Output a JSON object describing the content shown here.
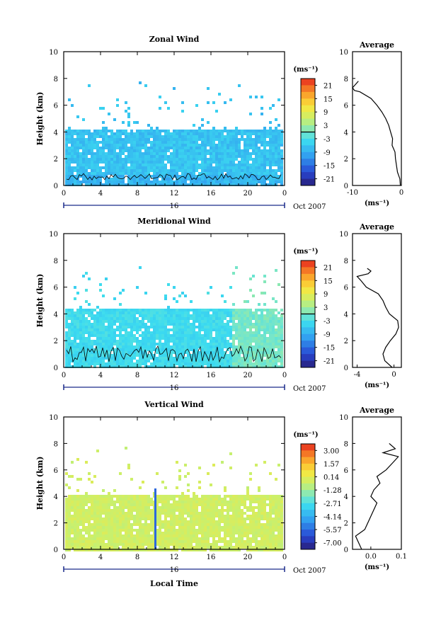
{
  "chart_data": [
    {
      "type": "heatmap",
      "title": "Zonal Wind",
      "ylabel": "Height (km)",
      "yticks": [
        "0",
        "2",
        "4",
        "6",
        "8",
        "10"
      ],
      "ylim": [
        0,
        10
      ],
      "xticks": [
        "0",
        "4",
        "8",
        "12",
        "16",
        "20",
        "0"
      ],
      "xlim": [
        0,
        24
      ],
      "date_day": "16",
      "date_suffix": "Oct 2007",
      "colorbar": {
        "unit": "(ms⁻¹)",
        "ticks": [
          "21",
          "15",
          "9",
          "3",
          "-3",
          "-9",
          "-15",
          "-21"
        ],
        "range": [
          -24,
          24
        ]
      },
      "coverage_top_km": 4.3,
      "contour_level": 0,
      "average": {
        "title": "Average",
        "xticks": [
          "-10",
          "0"
        ],
        "xlim": [
          -10,
          0
        ],
        "ylim": [
          0,
          10
        ],
        "xlabel": "(ms⁻¹)",
        "profile": [
          [
            0.0,
            -0.2
          ],
          [
            0.5,
            -0.3
          ],
          [
            1.0,
            -0.8
          ],
          [
            1.5,
            -1.0
          ],
          [
            2.0,
            -1.2
          ],
          [
            2.5,
            -1.3
          ],
          [
            3.0,
            -1.9
          ],
          [
            3.5,
            -1.8
          ],
          [
            4.0,
            -2.2
          ],
          [
            4.5,
            -2.6
          ],
          [
            5.0,
            -3.2
          ],
          [
            5.5,
            -4.0
          ],
          [
            6.0,
            -5.0
          ],
          [
            6.5,
            -6.2
          ],
          [
            7.0,
            -8.5
          ],
          [
            7.1,
            -9.6
          ],
          [
            7.3,
            -10.0
          ],
          [
            7.8,
            -8.8
          ]
        ]
      }
    },
    {
      "type": "heatmap",
      "title": "Meridional Wind",
      "ylabel": "Height (km)",
      "yticks": [
        "0",
        "2",
        "4",
        "6",
        "8",
        "10"
      ],
      "ylim": [
        0,
        10
      ],
      "xticks": [
        "0",
        "4",
        "8",
        "12",
        "16",
        "20",
        "0"
      ],
      "xlim": [
        0,
        24
      ],
      "date_day": "16",
      "date_suffix": "Oct 2007",
      "colorbar": {
        "unit": "(ms⁻¹)",
        "ticks": [
          "21",
          "15",
          "9",
          "3",
          "-3",
          "-9",
          "-15",
          "-21"
        ],
        "range": [
          -24,
          24
        ]
      },
      "coverage_top_km": 4.4,
      "contour_level": 0,
      "average": {
        "title": "Average",
        "xticks": [
          "-4",
          "0"
        ],
        "xlim": [
          -4.5,
          0.8
        ],
        "ylim": [
          0,
          10
        ],
        "xlabel": "(ms⁻¹)",
        "profile": [
          [
            0.0,
            -0.2
          ],
          [
            0.5,
            -1.0
          ],
          [
            1.0,
            -1.2
          ],
          [
            1.5,
            -0.9
          ],
          [
            2.0,
            -0.4
          ],
          [
            2.5,
            0.2
          ],
          [
            3.0,
            0.5
          ],
          [
            3.5,
            0.4
          ],
          [
            4.0,
            -0.5
          ],
          [
            4.5,
            -0.9
          ],
          [
            5.0,
            -1.2
          ],
          [
            5.5,
            -1.7
          ],
          [
            6.0,
            -3.0
          ],
          [
            6.5,
            -3.6
          ],
          [
            6.8,
            -4.0
          ],
          [
            7.0,
            -2.8
          ],
          [
            7.2,
            -2.5
          ],
          [
            7.4,
            -2.9
          ]
        ]
      }
    },
    {
      "type": "heatmap",
      "title": "Vertical Wind",
      "ylabel": "Height (km)",
      "yticks": [
        "0",
        "2",
        "4",
        "6",
        "8",
        "10"
      ],
      "ylim": [
        0,
        10
      ],
      "xticks": [
        "0",
        "4",
        "8",
        "12",
        "16",
        "20",
        "0"
      ],
      "xlim": [
        0,
        24
      ],
      "xlabel": "Local Time",
      "date_day": "16",
      "date_suffix": "Oct 2007",
      "colorbar": {
        "unit": "(ms⁻¹)",
        "ticks": [
          "3.00",
          "1.57",
          "0.14",
          "-1.28",
          "-2.71",
          "-4.14",
          "-5.57",
          "-7.00"
        ],
        "range": [
          -7.7,
          3.7
        ]
      },
      "coverage_top_km": 4.3,
      "average": {
        "title": "Average",
        "xticks": [
          "0.0",
          "0.1"
        ],
        "xlim": [
          -0.06,
          0.1
        ],
        "ylim": [
          0,
          10
        ],
        "xlabel": "(ms⁻¹)",
        "profile": [
          [
            0.0,
            -0.03
          ],
          [
            0.5,
            -0.04
          ],
          [
            1.0,
            -0.05
          ],
          [
            1.5,
            -0.02
          ],
          [
            2.0,
            -0.01
          ],
          [
            2.5,
            0.0
          ],
          [
            3.0,
            0.01
          ],
          [
            3.5,
            0.02
          ],
          [
            4.0,
            0.0
          ],
          [
            4.5,
            0.01
          ],
          [
            5.0,
            0.03
          ],
          [
            5.5,
            0.02
          ],
          [
            6.0,
            0.05
          ],
          [
            6.5,
            0.07
          ],
          [
            7.0,
            0.09
          ],
          [
            7.3,
            0.04
          ],
          [
            7.6,
            0.08
          ],
          [
            8.0,
            0.06
          ]
        ]
      }
    }
  ]
}
